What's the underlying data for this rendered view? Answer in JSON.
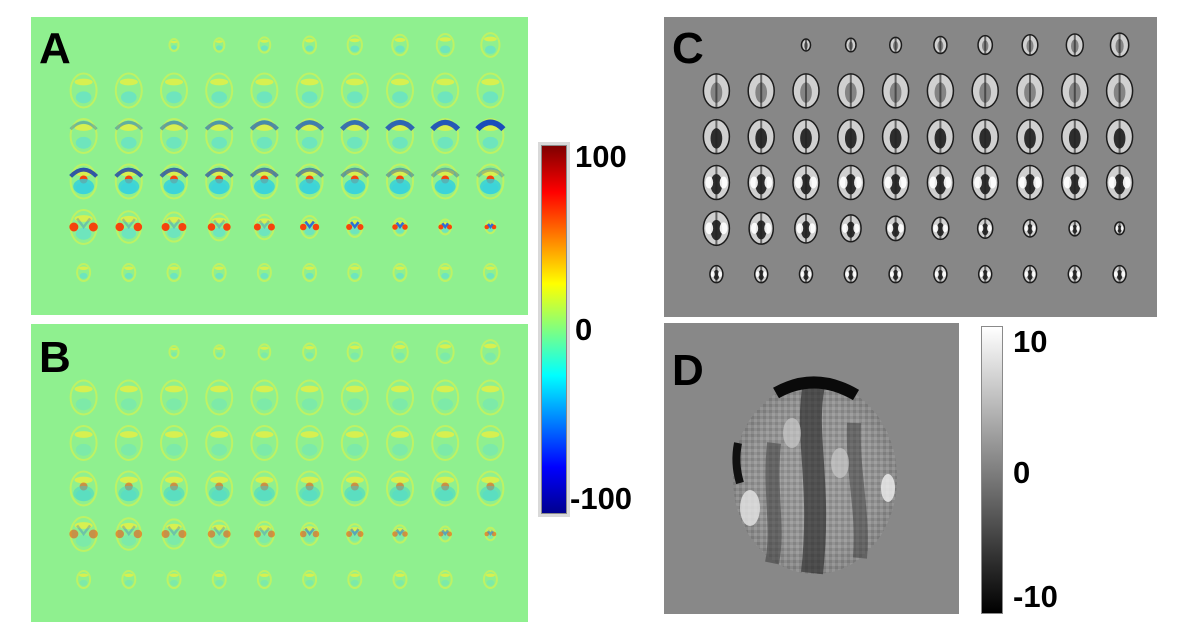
{
  "panels": {
    "a": {
      "letter": "A"
    },
    "b": {
      "letter": "B"
    },
    "c": {
      "letter": "C"
    },
    "d": {
      "letter": "D"
    }
  },
  "colorbar_jet": {
    "ticks": [
      "100",
      "0",
      "-100"
    ],
    "colors": [
      "#7f0000",
      "#ff0000",
      "#ff8000",
      "#ffff00",
      "#80ff80",
      "#00ffff",
      "#0080ff",
      "#0000ff",
      "#00008f"
    ]
  },
  "colorbar_gray": {
    "ticks": [
      "10",
      "0",
      "-10"
    ]
  },
  "colors": {
    "jet_background": "#8ff08f",
    "gray_background": "#878787"
  },
  "grid": {
    "rows": 6,
    "cols": 10
  }
}
